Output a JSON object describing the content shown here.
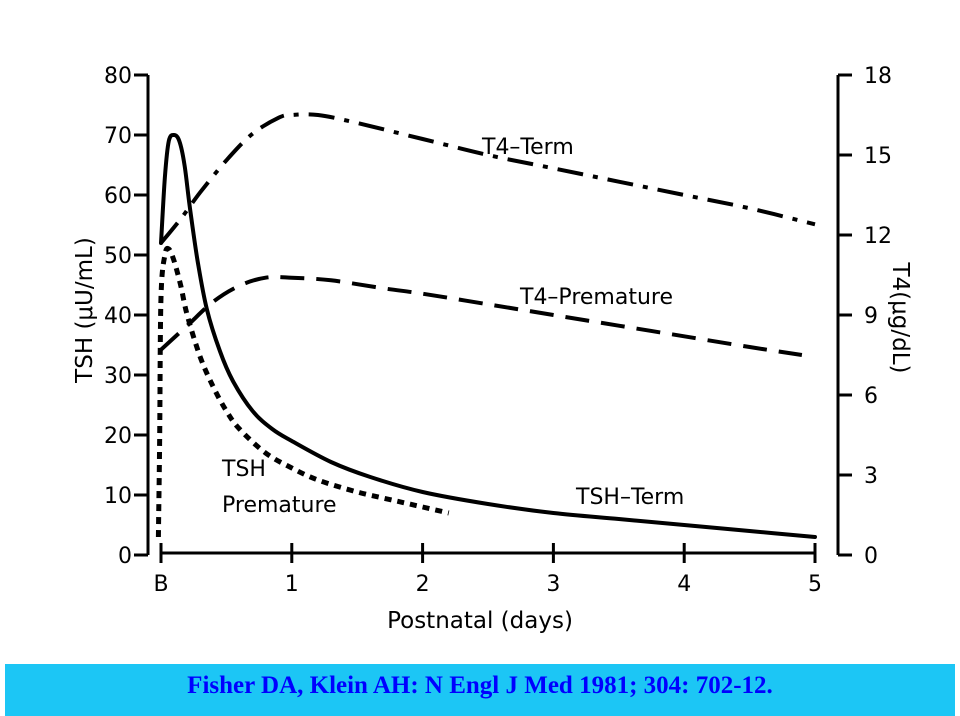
{
  "chart_data": {
    "type": "line",
    "x_ticks": [
      {
        "value": 0,
        "label": "B"
      },
      {
        "value": 1,
        "label": "1"
      },
      {
        "value": 2,
        "label": "2"
      },
      {
        "value": 3,
        "label": "3"
      },
      {
        "value": 4,
        "label": "4"
      },
      {
        "value": 5,
        "label": "5"
      }
    ],
    "xlabel": "Postnatal (days)",
    "xlim": [
      0,
      5
    ],
    "y_left": {
      "label": "TSH (μU/mL)",
      "ticks": [
        "0",
        "10",
        "20",
        "30",
        "40",
        "50",
        "60",
        "70",
        "80"
      ],
      "lim": [
        0,
        80
      ]
    },
    "y_right": {
      "label": "T4(μg/dL)",
      "ticks": [
        "0",
        "3",
        "6",
        "9",
        "12",
        "15",
        "18"
      ],
      "lim": [
        0,
        18
      ]
    },
    "grid": false,
    "series": [
      {
        "name": "T4–Term",
        "axis": "right",
        "style": "dash-dot",
        "x": [
          0,
          0.15,
          0.3,
          0.5,
          0.7,
          0.9,
          1.0,
          1.2,
          1.5,
          2.0,
          2.5,
          3.0,
          3.5,
          4.0,
          4.5,
          5.0
        ],
        "y": [
          11.7,
          12.6,
          13.6,
          14.8,
          15.8,
          16.4,
          16.5,
          16.5,
          16.2,
          15.6,
          15.0,
          14.5,
          14.0,
          13.5,
          13.0,
          12.4
        ]
      },
      {
        "name": "T4–Premature",
        "axis": "right",
        "style": "dashed",
        "x": [
          0,
          0.2,
          0.4,
          0.6,
          0.8,
          1.0,
          1.3,
          1.7,
          2.0,
          2.5,
          3.0,
          3.5,
          4.0,
          4.5,
          4.9
        ],
        "y": [
          7.7,
          8.6,
          9.5,
          10.1,
          10.4,
          10.4,
          10.3,
          10.0,
          9.8,
          9.4,
          9.0,
          8.6,
          8.2,
          7.8,
          7.5
        ]
      },
      {
        "name": "TSH–Term",
        "axis": "left",
        "style": "solid",
        "x": [
          0,
          0.03,
          0.06,
          0.1,
          0.14,
          0.18,
          0.22,
          0.28,
          0.35,
          0.45,
          0.55,
          0.7,
          0.85,
          1.0,
          1.3,
          1.6,
          2.0,
          2.5,
          3.0,
          3.5,
          4.0,
          4.5,
          5.0
        ],
        "y": [
          52,
          63,
          69,
          70,
          69,
          65,
          58,
          49,
          41,
          34,
          29,
          24,
          21,
          19,
          15.5,
          13,
          10.5,
          8.5,
          7,
          6,
          5,
          4,
          3
        ]
      },
      {
        "name": "TSH Premature",
        "axis": "left",
        "style": "dotted",
        "x": [
          -0.02,
          -0.01,
          0,
          0.03,
          0.06,
          0.1,
          0.15,
          0.2,
          0.3,
          0.4,
          0.5,
          0.6,
          0.8,
          1.0,
          1.2,
          1.5,
          1.8,
          2.0,
          2.2
        ],
        "y": [
          3,
          20,
          43,
          50,
          51,
          49,
          45,
          40,
          33,
          28,
          24,
          21,
          17,
          14.5,
          12.5,
          10.5,
          9,
          8,
          7
        ]
      }
    ],
    "annotations": [
      {
        "text": "T4–Term"
      },
      {
        "text": "T4–Premature"
      },
      {
        "text": "TSH"
      },
      {
        "text": "Premature"
      },
      {
        "text": "TSH–Term"
      }
    ]
  },
  "footer": {
    "citation": "Fisher DA, Klein AH: N Engl J Med 1981; 304: 702-12."
  }
}
